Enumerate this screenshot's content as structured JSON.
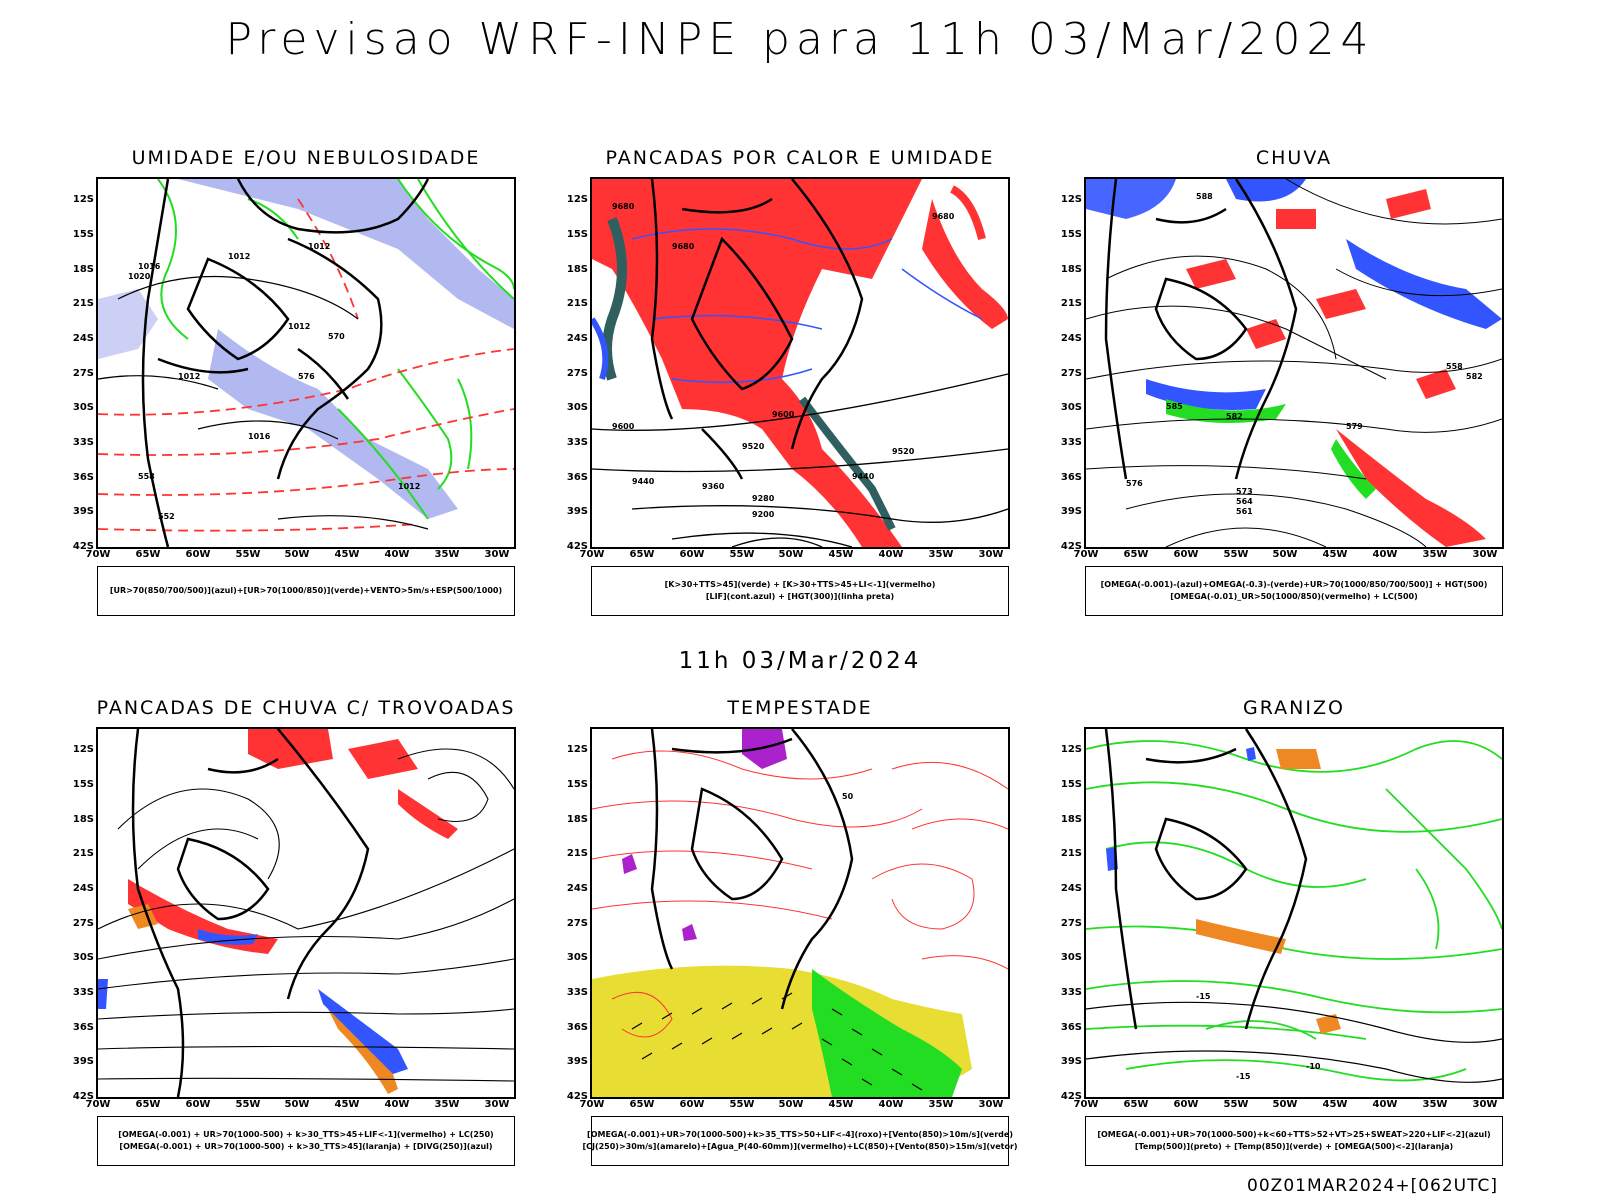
{
  "header": {
    "title": "Previsao WRF-INPE  para 11h 03/Mar/2024"
  },
  "middle": {
    "title": "11h 03/Mar/2024"
  },
  "footer": {
    "run_stamp": "00Z01MAR2024+[062UTC]"
  },
  "axes": {
    "lat_labels": [
      "12S",
      "15S",
      "18S",
      "21S",
      "24S",
      "27S",
      "30S",
      "33S",
      "36S",
      "39S",
      "42S"
    ],
    "lon_labels": [
      "70W",
      "65W",
      "60W",
      "55W",
      "50W",
      "45W",
      "40W",
      "35W",
      "30W"
    ]
  },
  "colors": {
    "blue": "#3355ff",
    "green": "#22dd22",
    "red": "#ff3333",
    "purple": "#aa22cc",
    "yellow": "#e8dd33",
    "orange": "#ee8822",
    "lavender": "#aab0ee",
    "teal": "#2f5f5f"
  },
  "panels": [
    {
      "id": "umidade",
      "title": "UMIDADE E/OU NEBULOSIDADE",
      "legend": [
        "[UR>70(850/700/500)](azul)+[UR>70(1000/850)](verde)+VENTO>5m/s+ESP(500/1000)"
      ],
      "labels": [
        "1012",
        "1012",
        "1016",
        "1020",
        "1012",
        "1012",
        "1016",
        "1012",
        "570",
        "576",
        "558",
        "552"
      ]
    },
    {
      "id": "pancadas-calor",
      "title": "PANCADAS POR CALOR E UMIDADE",
      "legend": [
        "[K>30+TTS>45](verde) + [K>30+TTS>45+LI<-1](vermelho)",
        "[LIF](cont.azul) + [HGT(300)](linha preta)"
      ],
      "labels": [
        "9680",
        "9680",
        "9600",
        "9520",
        "9520",
        "9440",
        "9440",
        "9360",
        "9280",
        "9200",
        "9600",
        "9680"
      ]
    },
    {
      "id": "chuva",
      "title": "CHUVA",
      "legend": [
        "[OMEGA(-0.001)-(azul)+OMEGA(-0.3)-(verde)+UR>70(1000/850/700/500)] + HGT(500)",
        "[OMEGA(-0.01)_UR>50(1000/850)(vermelho) + LC(500)"
      ],
      "labels": [
        "588",
        "585",
        "582",
        "579",
        "576",
        "573",
        "564",
        "561",
        "558",
        "582"
      ]
    },
    {
      "id": "trovoadas",
      "title": "PANCADAS DE CHUVA C/ TROVOADAS",
      "legend": [
        "[OMEGA(-0.001) + UR>70(1000-500) + k>30_TTS>45+LIF<-1](vermelho) + LC(250)",
        "[OMEGA(-0.001) + UR>70(1000-500) + k>30_TTS>45](laranja) + [DIVG(250)](azul)"
      ],
      "labels": []
    },
    {
      "id": "tempestade",
      "title": "TEMPESTADE",
      "legend": [
        "[OMEGA(-0.001)+UR>70(1000-500)+k>35_TTS>50+LIF<-4](roxo)+[Vento(850)>10m/s](verde)",
        "[CJ(250)>30m/s](amarelo)+[Agua_P(40-60mm)](vermelho)+LC(850)+[Vento(850)>15m/s](vetor)"
      ],
      "labels": [
        "50"
      ]
    },
    {
      "id": "granizo",
      "title": "GRANIZO",
      "legend": [
        "[OMEGA(-0.001)+UR>70(1000-500)+k<60+TTS>52+VT>25+SWEAT>220+LIF<-2](azul)",
        "[Temp(500)](preto) + [Temp(850)](verde) + [OMEGA(500)<-2](laranja)"
      ],
      "labels": [
        "-15",
        "-10",
        "-15"
      ]
    }
  ]
}
